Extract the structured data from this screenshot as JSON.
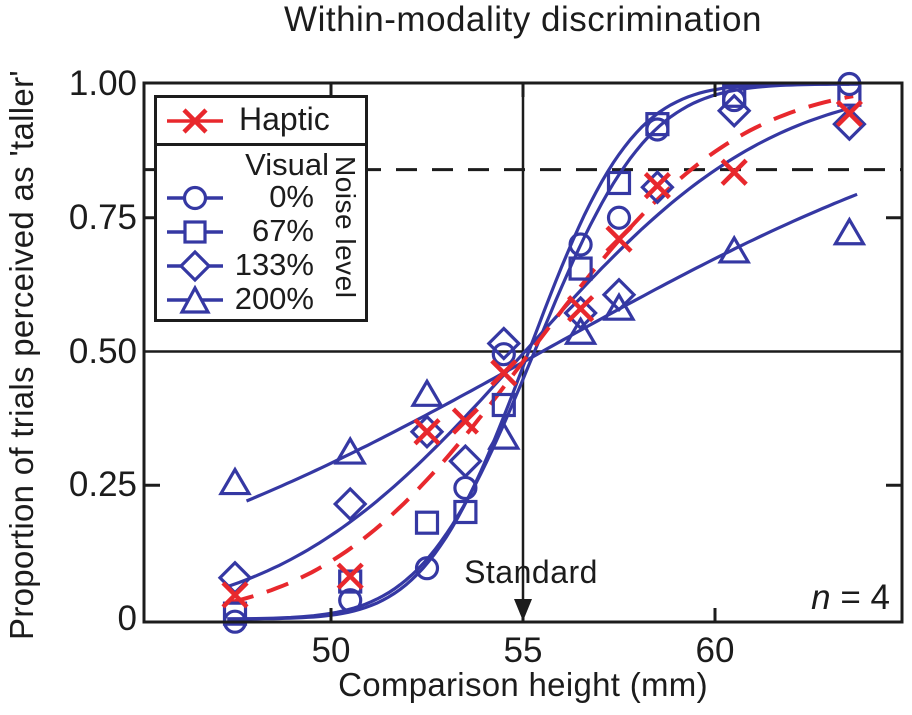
{
  "figure": {
    "title": "Within-modality discrimination"
  },
  "axes": {
    "x_label": "Comparison height (mm)",
    "y_label": "Proportion of trials perceived as 'taller'",
    "x_ticks": [
      {
        "value": 50,
        "label": "50"
      },
      {
        "value": 55,
        "label": "55"
      },
      {
        "value": 60,
        "label": "60"
      }
    ],
    "y_ticks": [
      {
        "value": 0,
        "label": "0",
        "tick": false
      },
      {
        "value": 0.25,
        "label": "0.25",
        "tick": true
      },
      {
        "value": 0.5,
        "label": "0.50",
        "tick": false
      },
      {
        "value": 0.75,
        "label": "0.75",
        "tick": true
      },
      {
        "value": 1.0,
        "label": "1.00",
        "tick": false
      }
    ]
  },
  "annotations": {
    "standard_label": "Standard",
    "n_symbol": "n",
    "n_rest": " = 4"
  },
  "legend": {
    "haptic_label": "Haptic",
    "visual_label": "Visual",
    "noise_label": "Noise level",
    "items": [
      {
        "label": "0%",
        "marker": "circle"
      },
      {
        "label": "67%",
        "marker": "square"
      },
      {
        "label": "133%",
        "marker": "diamond"
      },
      {
        "label": "200%",
        "marker": "triangle"
      }
    ]
  },
  "colors": {
    "haptic_red": "#e8282d",
    "visual_blue": "#3538a3",
    "axis_black": "#1c1c1c"
  },
  "chart_data": {
    "type": "scatter",
    "title": "Within-modality discrimination",
    "xlabel": "Comparison height (mm)",
    "ylabel": "Proportion of trials perceived as 'taller'",
    "xlim": [
      45.1,
      64.9
    ],
    "ylim": [
      -0.01,
      1.01
    ],
    "grid": false,
    "legend_position": "upper-left",
    "reference_lines": {
      "horizontal_solid_y": 0.5,
      "horizontal_dashed_y": 0.84,
      "vertical_solid_x": 55
    },
    "series": [
      {
        "name": "Haptic",
        "marker": "x",
        "color": "#e8282d",
        "line": "dashed",
        "fit": {
          "pse": 55.2,
          "sigma": 4.2,
          "range": [
            47.4,
            63.6
          ]
        },
        "points": [
          [
            47.5,
            0.045
          ],
          [
            50.5,
            0.08
          ],
          [
            52.5,
            0.35
          ],
          [
            53.5,
            0.37
          ],
          [
            54.5,
            0.46
          ],
          [
            56.5,
            0.58
          ],
          [
            57.5,
            0.71
          ],
          [
            58.5,
            0.81
          ],
          [
            60.5,
            0.835
          ],
          [
            63.5,
            0.945
          ]
        ]
      },
      {
        "name": "Visual 0% noise",
        "marker": "circle",
        "color": "#3538a3",
        "line": "solid",
        "fit": {
          "pse": 55.15,
          "sigma": 2.1,
          "range": [
            47.3,
            63.6
          ]
        },
        "points": [
          [
            47.5,
            -0.005
          ],
          [
            50.5,
            0.035
          ],
          [
            52.5,
            0.095
          ],
          [
            53.5,
            0.245
          ],
          [
            54.5,
            0.495
          ],
          [
            56.5,
            0.7
          ],
          [
            57.5,
            0.75
          ],
          [
            58.5,
            0.915
          ],
          [
            60.5,
            0.97
          ],
          [
            63.5,
            1.0
          ]
        ]
      },
      {
        "name": "Visual 67% noise",
        "marker": "square",
        "color": "#3538a3",
        "line": "solid",
        "fit": {
          "pse": 55.3,
          "sigma": 2.3,
          "range": [
            47.3,
            63.6
          ]
        },
        "points": [
          [
            47.5,
            0.01
          ],
          [
            50.5,
            0.07
          ],
          [
            52.5,
            0.18
          ],
          [
            53.5,
            0.2
          ],
          [
            54.5,
            0.4
          ],
          [
            56.5,
            0.655
          ],
          [
            57.5,
            0.815
          ],
          [
            58.5,
            0.925
          ],
          [
            60.5,
            0.978
          ],
          [
            63.5,
            0.98
          ]
        ]
      },
      {
        "name": "Visual 133% noise",
        "marker": "diamond",
        "color": "#3538a3",
        "line": "solid",
        "fit": {
          "pse": 55.05,
          "sigma": 5.0,
          "range": [
            47.3,
            63.7
          ]
        },
        "points": [
          [
            47.5,
            0.077
          ],
          [
            50.5,
            0.215
          ],
          [
            52.5,
            0.35
          ],
          [
            53.5,
            0.295
          ],
          [
            54.5,
            0.515
          ],
          [
            56.5,
            0.572
          ],
          [
            57.5,
            0.606
          ],
          [
            58.5,
            0.807
          ],
          [
            60.5,
            0.95
          ],
          [
            63.5,
            0.925
          ]
        ]
      },
      {
        "name": "Visual 200% noise",
        "marker": "triangle",
        "color": "#3538a3",
        "line": "solid",
        "fit": {
          "pse": 55.5,
          "sigma": 10.0,
          "range": [
            47.8,
            63.8
          ]
        },
        "points": [
          [
            47.5,
            0.255
          ],
          [
            50.5,
            0.312
          ],
          [
            52.5,
            0.42
          ],
          [
            54.5,
            0.34
          ],
          [
            56.5,
            0.536
          ],
          [
            57.5,
            0.581
          ],
          [
            60.5,
            0.688
          ],
          [
            63.5,
            0.722
          ]
        ]
      }
    ]
  }
}
